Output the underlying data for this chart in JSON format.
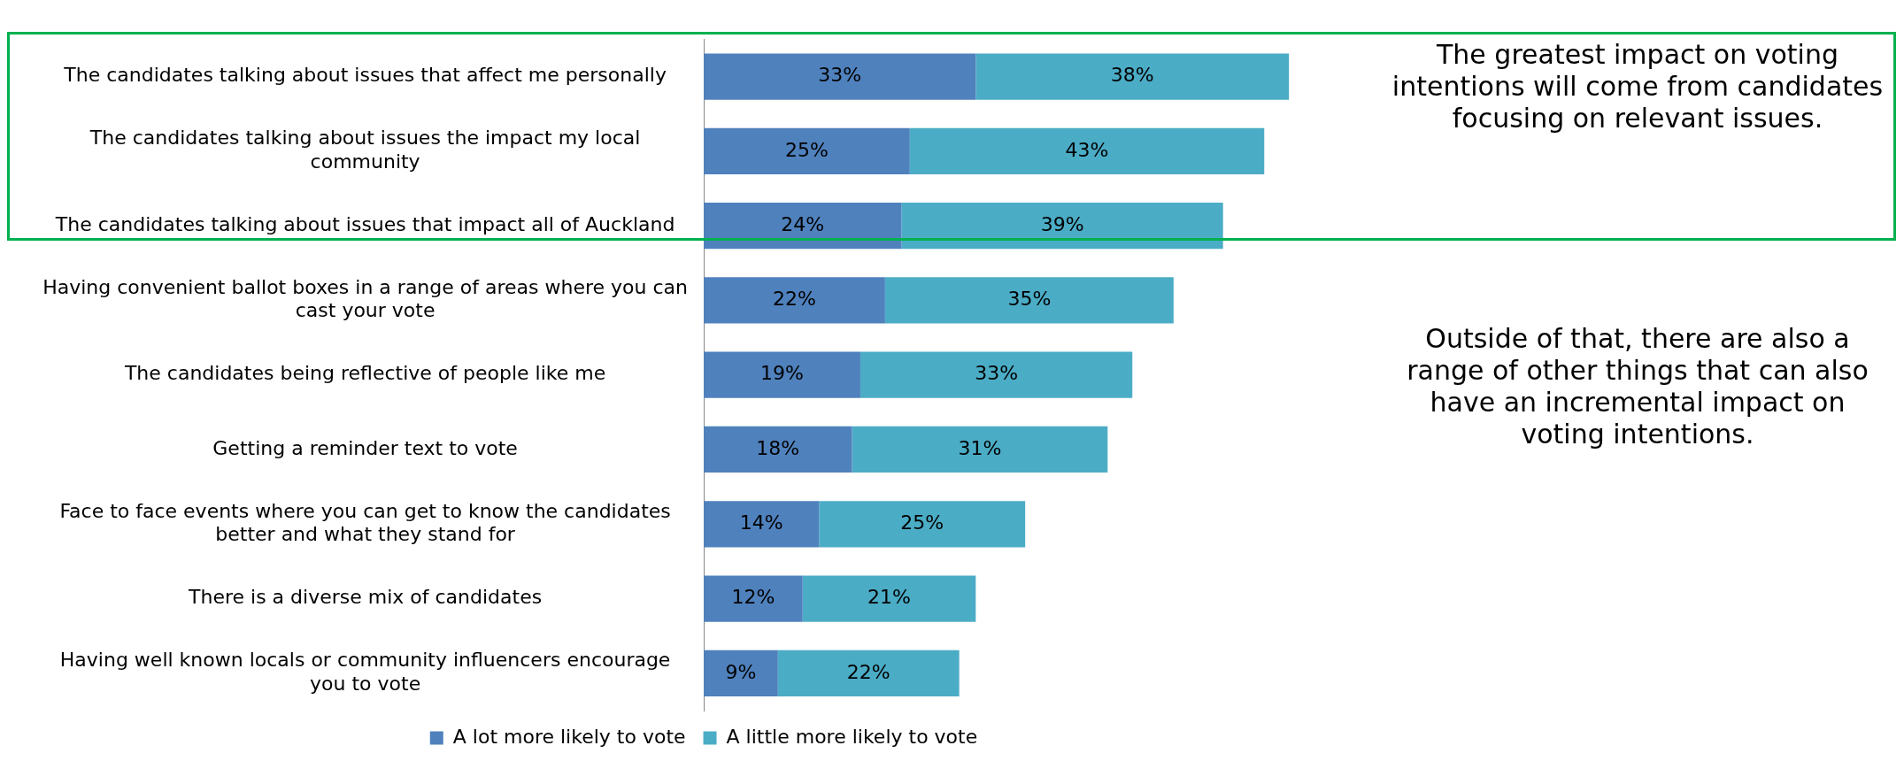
{
  "chart_data": {
    "type": "bar",
    "orientation": "horizontal",
    "stacked": true,
    "legend": "bottom",
    "categories": [
      "The candidates talking about issues that affect me personally",
      "The candidates talking about issues the impact my local community",
      "The candidates talking about issues that impact all of Auckland",
      "Having convenient ballot boxes in a range of areas where you can cast your vote",
      "The candidates being reflective of people like me",
      "Getting a reminder text to vote",
      "Face to face events where you can get to know the candidates better and what they stand for",
      "There is a diverse mix of candidates",
      "Having well known locals or community influencers encourage you to vote"
    ],
    "series": [
      {
        "name": "A lot more likely to vote",
        "color": "#4f81bd",
        "values": [
          33,
          25,
          24,
          22,
          19,
          18,
          14,
          12,
          9
        ],
        "value_labels": [
          "33%",
          "25%",
          "24%",
          "22%",
          "19%",
          "18%",
          "14%",
          "12%",
          "9%"
        ]
      },
      {
        "name": "A little more likely to vote",
        "color": "#4bacc6",
        "values": [
          38,
          43,
          39,
          35,
          33,
          31,
          25,
          21,
          22
        ],
        "value_labels": [
          "38%",
          "43%",
          "39%",
          "35%",
          "33%",
          "31%",
          "25%",
          "21%",
          "22%"
        ]
      }
    ],
    "annotations": [
      "The greatest impact on voting intentions will come from candidates focusing on relevant issues.",
      "Outside of that, there are also a range of other things that can also have an incremental impact on voting intentions."
    ]
  }
}
